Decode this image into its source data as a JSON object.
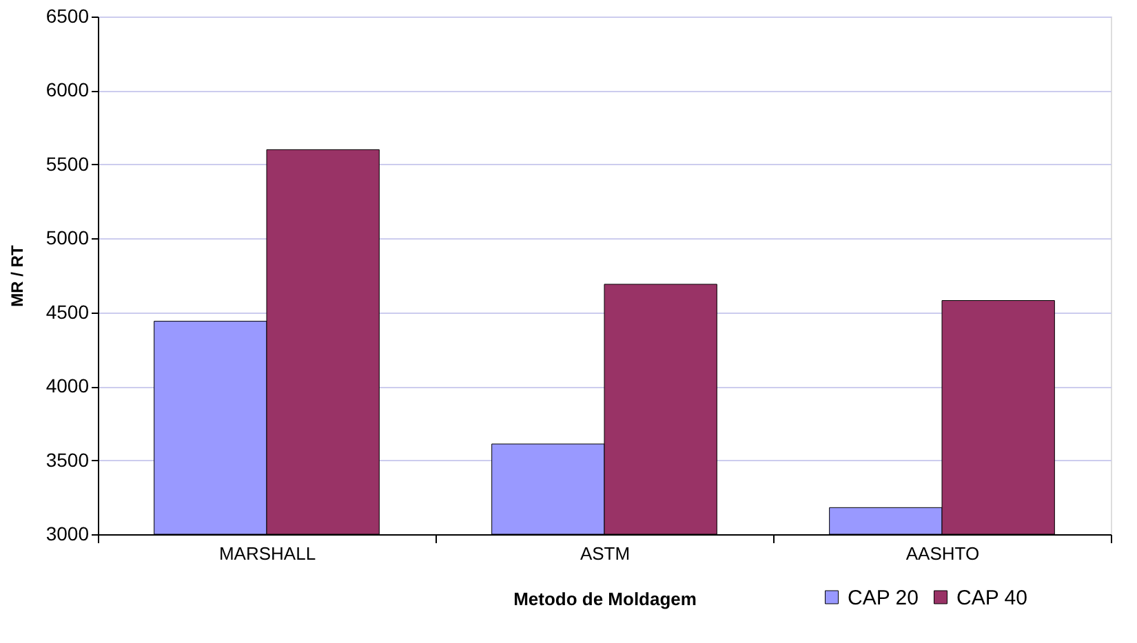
{
  "chart_data": {
    "type": "bar",
    "xlabel": "Metodo de Moldagem",
    "ylabel": "MR / RT",
    "categories": [
      "MARSHALL",
      "ASTM",
      "AASHTO"
    ],
    "series": [
      {
        "name": "CAP 20",
        "color": "#9999ff",
        "values": [
          4440,
          3610,
          3180
        ]
      },
      {
        "name": "CAP 40",
        "color": "#993366",
        "values": [
          5600,
          4690,
          4580
        ]
      }
    ],
    "ylim": [
      3000,
      6500
    ],
    "yticks": [
      3000,
      3500,
      4000,
      4500,
      5000,
      5500,
      6000,
      6500
    ],
    "grid": "y",
    "legend": "bottom right"
  }
}
